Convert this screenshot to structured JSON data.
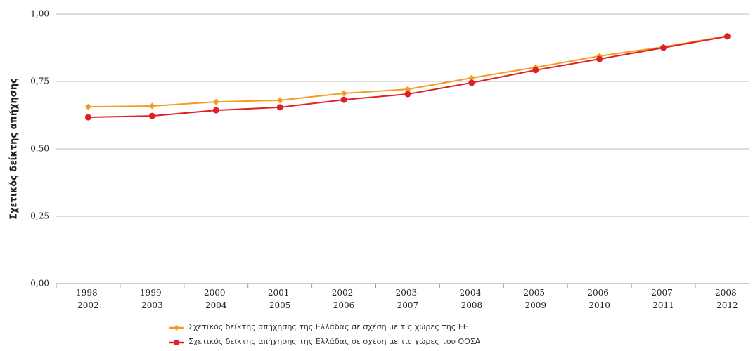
{
  "chart_data": {
    "type": "line",
    "y_label": "Σχετικός δείκτης απήχησης",
    "categories": [
      "1998-2002",
      "1999-2003",
      "2000-2004",
      "2001-2005",
      "2002-2006",
      "2003-2007",
      "2004-2008",
      "2005-2009",
      "2006-2010",
      "2007-2011",
      "2008-2012"
    ],
    "series": [
      {
        "name": "Σχετικός δείκτης απήχησης της Ελλάδας σε σχέση με τις χώρες της ΕΕ",
        "color": "#f39c1e",
        "marker": "diamond",
        "values": [
          0.656,
          0.659,
          0.674,
          0.68,
          0.706,
          0.721,
          0.763,
          0.802,
          0.844,
          0.878,
          0.919
        ]
      },
      {
        "name": "Σχετικός δείκτης απήχησης της Ελλάδας σε σχέση με τις χώρες του ΟΟΣΑ",
        "color": "#e02027",
        "marker": "circle",
        "values": [
          0.617,
          0.622,
          0.643,
          0.654,
          0.682,
          0.703,
          0.745,
          0.792,
          0.833,
          0.875,
          0.917
        ]
      }
    ],
    "ylim": [
      0,
      1
    ],
    "yticks": [
      {
        "value": 0,
        "label": "0,00"
      },
      {
        "value": 0.25,
        "label": "0,25"
      },
      {
        "value": 0.5,
        "label": "0,50"
      },
      {
        "value": 0.75,
        "label": "0,75"
      },
      {
        "value": 1,
        "label": "1,00"
      }
    ],
    "grid": true,
    "legend": "bottom"
  }
}
